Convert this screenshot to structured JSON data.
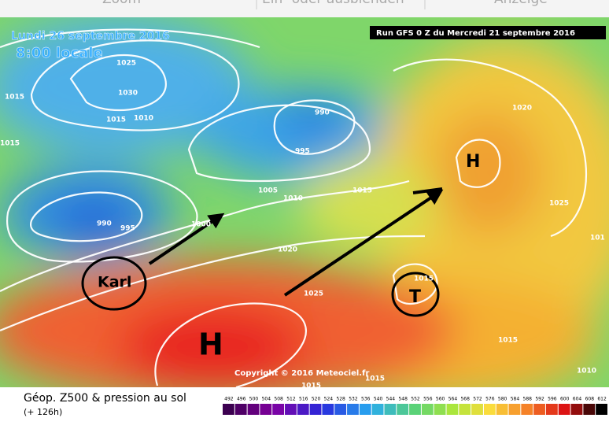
{
  "toolbar": [
    "Zoom",
    "Ein- oder ausblenden",
    "Anzeige"
  ],
  "map": {
    "date": "Lundi 26 septembre 2016",
    "time": "8:00 locale",
    "run": "Run GFS 0 Z du Mercredi 21 septembre 2016",
    "isobar_labels": [
      "1025",
      "1030",
      "1015",
      "1010",
      "1015",
      "1015",
      "990",
      "995",
      "1005",
      "1010",
      "1015",
      "990",
      "995",
      "1000",
      "1020",
      "1025",
      "1020",
      "1025",
      "1015",
      "1015",
      "1010",
      "1015",
      "1015",
      "101"
    ],
    "centers": [
      "H",
      "H",
      "T"
    ],
    "storm": "Karl",
    "copyright": "Copyright © 2016 Meteociel.fr"
  },
  "footer": {
    "title": "Géop. Z500 & pression au sol",
    "lead": "(+ 126h)"
  },
  "legend": {
    "levels": [
      492,
      496,
      500,
      504,
      508,
      512,
      516,
      520,
      524,
      528,
      532,
      536,
      540,
      544,
      548,
      552,
      556,
      560,
      564,
      568,
      572,
      576,
      580,
      584,
      588,
      592,
      596,
      600,
      604,
      608,
      612
    ]
  }
}
